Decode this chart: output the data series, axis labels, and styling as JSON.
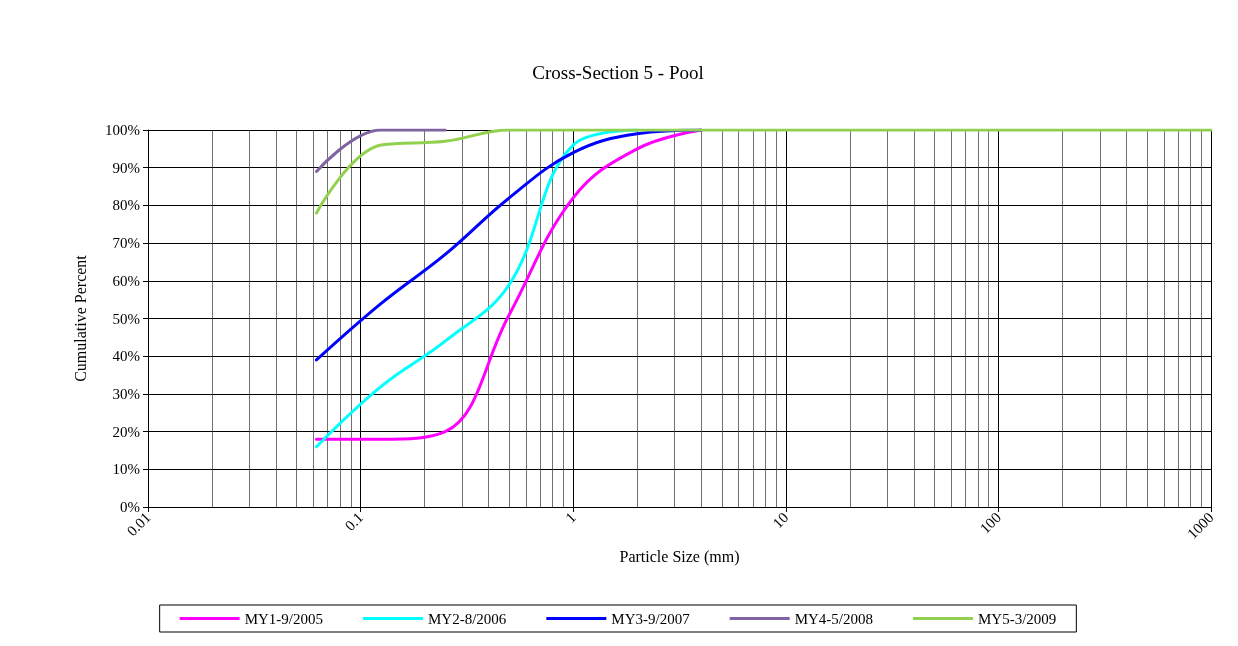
{
  "chart_data": {
    "type": "line",
    "title": "Cross-Section 5 - Pool",
    "xlabel": "Particle Size (mm)",
    "ylabel": "Cumulative Percent",
    "log": "x",
    "grid": true,
    "legend": "bottom",
    "marker": "none",
    "line_style": "solid",
    "xlim": [
      0.01,
      1000
    ],
    "xticks": [
      0.01,
      0.1,
      1,
      10,
      100,
      1000
    ],
    "ylim": [
      0,
      100
    ],
    "yticks": [
      {
        "value": 0,
        "label": "0%"
      },
      {
        "value": 10,
        "label": "10%"
      },
      {
        "value": 20,
        "label": "20%"
      },
      {
        "value": 30,
        "label": "30%"
      },
      {
        "value": 40,
        "label": "40%"
      },
      {
        "value": 50,
        "label": "50%"
      },
      {
        "value": 60,
        "label": "60%"
      },
      {
        "value": 70,
        "label": "70%"
      },
      {
        "value": 80,
        "label": "80%"
      },
      {
        "value": 90,
        "label": "90%"
      },
      {
        "value": 100,
        "label": "100%"
      }
    ],
    "series": [
      {
        "name": "MY1-9/2005",
        "color": "#ff00ff",
        "x": [
          0.062,
          0.125,
          0.25,
          0.5,
          1,
          2,
          4
        ],
        "values": [
          18,
          18,
          20,
          51,
          82,
          95,
          100
        ]
      },
      {
        "name": "MY2-8/2006",
        "color": "#00ffff",
        "x": [
          0.062,
          0.125,
          0.25,
          0.5,
          1,
          2
        ],
        "values": [
          16,
          32,
          44,
          59,
          96,
          100
        ]
      },
      {
        "name": "MY3-9/2007",
        "color": "#0000ff",
        "x": [
          0.062,
          0.125,
          0.25,
          0.5,
          1,
          2,
          4
        ],
        "values": [
          39,
          54,
          67,
          82,
          94,
          99,
          100
        ]
      },
      {
        "name": "MY4-5/2008",
        "color": "#8064a2",
        "x": [
          0.062,
          0.125,
          0.25
        ],
        "values": [
          89,
          100,
          100
        ]
      },
      {
        "name": "MY5-3/2009",
        "color": "#92d050",
        "x": [
          0.062,
          0.125,
          0.25,
          0.5,
          1000
        ],
        "values": [
          78,
          96,
          97,
          100,
          100
        ]
      }
    ]
  }
}
